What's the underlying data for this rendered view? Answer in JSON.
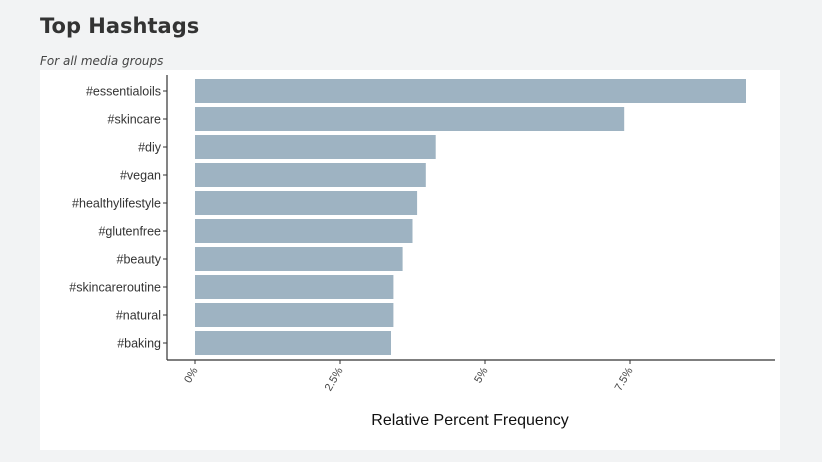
{
  "header": {
    "title": "Top Hashtags",
    "subtitle": "For all media groups"
  },
  "colors": {
    "bar": "#9eb3c2",
    "axis": "#333333",
    "panel": "#ffffff",
    "background": "#f2f3f4"
  },
  "chart_data": {
    "type": "bar",
    "orientation": "horizontal",
    "categories": [
      "#essentialoils",
      "#skincare",
      "#diy",
      "#vegan",
      "#healthylifestyle",
      "#glutenfree",
      "#beauty",
      "#skincareroutine",
      "#natural",
      "#baking"
    ],
    "values": [
      9.5,
      7.4,
      4.15,
      3.98,
      3.83,
      3.75,
      3.58,
      3.42,
      3.42,
      3.38
    ],
    "xlabel": "Relative Percent Frequency",
    "ylabel": "",
    "xlim": [
      0,
      10
    ],
    "x_ticks": [
      0,
      2.5,
      5,
      7.5
    ],
    "x_tick_labels": [
      "0%",
      "2.5%",
      "5%",
      "7.5%"
    ],
    "grid": false
  }
}
